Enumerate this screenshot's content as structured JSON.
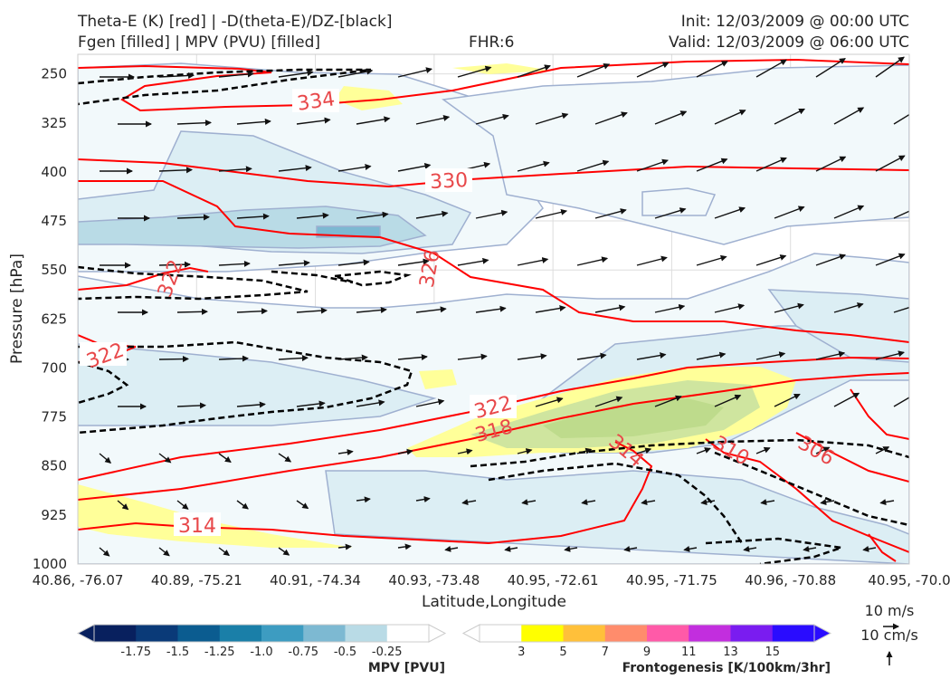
{
  "header": {
    "title_line1": "Theta-E (K) [red] | -D(theta-E)/DZ-[black]",
    "title_line2": "Fgen [filled] | MPV (PVU) [filled]",
    "fhr": "FHR:6",
    "init": "Init: 12/03/2009 @ 00:00 UTC",
    "valid": "Valid: 12/03/2009 @ 06:00 UTC"
  },
  "chart_data": {
    "type": "cross-section",
    "xlabel": "Latitude,Longitude",
    "ylabel": "Pressure [hPa]",
    "x_ticks": [
      "40.86, -76.07",
      "40.89, -75.21",
      "40.91, -74.34",
      "40.93, -73.48",
      "40.95, -72.61",
      "40.95, -71.75",
      "40.96, -70.88",
      "40.95, -70.0"
    ],
    "y_ticks": [
      "250",
      "325",
      "400",
      "475",
      "550",
      "625",
      "700",
      "775",
      "850",
      "925",
      "1000"
    ],
    "y_values": [
      250,
      325,
      400,
      475,
      550,
      625,
      700,
      775,
      850,
      925,
      1000
    ],
    "ylim": [
      1000,
      220
    ],
    "y_scale": "linear, inverted",
    "grid": true,
    "theta_e_contours": {
      "color": "#ff0000",
      "labels": [
        "334",
        "330",
        "326",
        "322",
        "322",
        "322",
        "318",
        "314",
        "314",
        "310",
        "306"
      ]
    },
    "wind_reference": {
      "u": "10 m/s",
      "v": "10 cm/s"
    },
    "colorbars": [
      {
        "title": "MPV [PVU]",
        "ticks": [
          "-1.75",
          "-1.5",
          "-1.25",
          "-1.0",
          "-0.75",
          "-0.5",
          "-0.25"
        ],
        "colors": [
          "#08205e",
          "#0a3a78",
          "#0b5c90",
          "#1a7fa8",
          "#3d9cc1",
          "#7db9d2",
          "#b9dbe6",
          "#ffffff"
        ]
      },
      {
        "title": "Frontogenesis [K/100km/3hr]",
        "ticks": [
          "3",
          "5",
          "7",
          "9",
          "11",
          "13",
          "15"
        ],
        "colors": [
          "#ffffff",
          "#ffff00",
          "#ffc03a",
          "#ff8c6c",
          "#ff5aa8",
          "#c22ede",
          "#7a1cf0",
          "#2a0cff"
        ]
      }
    ]
  }
}
